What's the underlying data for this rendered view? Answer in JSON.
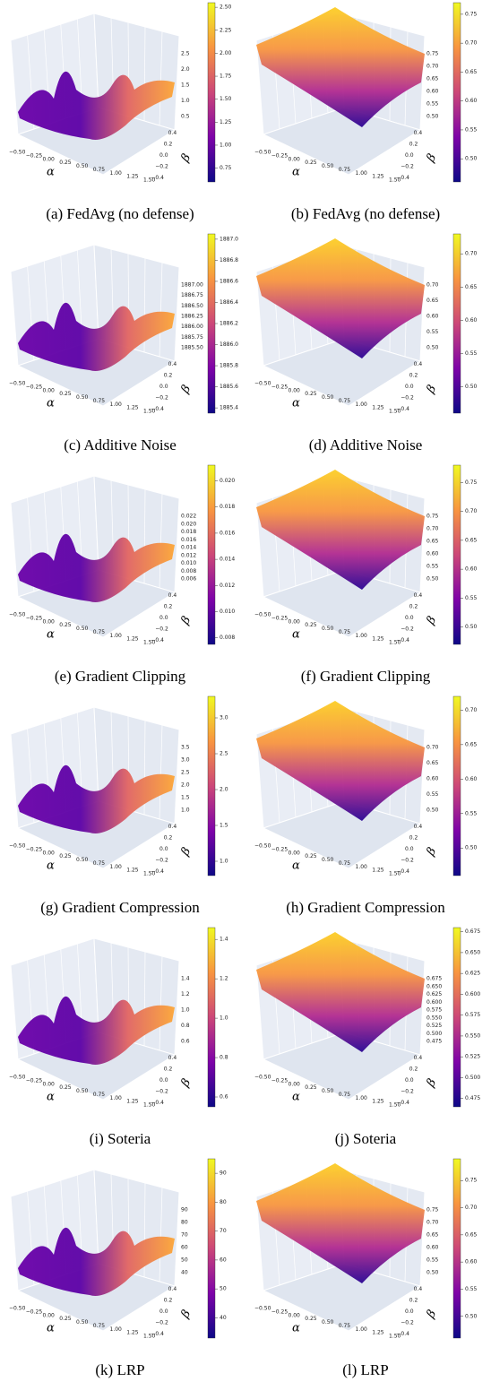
{
  "panels": [
    {
      "caption": "(a) FedAvg (no defense)",
      "colorbar": {
        "lim": [
          0.6,
          2.55
        ],
        "ticks": [
          0.75,
          {
            "value": 1,
            "label": "1.00"
          },
          1.25,
          {
            "value": 1.5,
            "label": "1.50"
          },
          1.75,
          {
            "value": 2,
            "label": "2.00"
          },
          2.25,
          {
            "value": 2.5,
            "label": "2.50"
          }
        ]
      },
      "zaxis": {
        "lim": [
          0.5,
          2.5
        ],
        "ticks": [
          0.5,
          {
            "value": 1,
            "label": "1.0"
          },
          1.5,
          {
            "value": 2,
            "label": "2.0"
          },
          2.5
        ]
      }
    },
    {
      "caption": "(b) FedAvg (no defense)",
      "colorbar": {
        "lim": [
          0.46,
          0.77
        ],
        "ticks": [
          {
            "value": 0.5,
            "label": "0.50"
          },
          0.55,
          {
            "value": 0.6,
            "label": "0.60"
          },
          0.65,
          {
            "value": 0.7,
            "label": "0.70"
          },
          0.75
        ]
      },
      "zaxis": {
        "lim": [
          0.5,
          0.75
        ],
        "ticks": [
          {
            "value": 0.5,
            "label": "0.50"
          },
          0.55,
          {
            "value": 0.6,
            "label": "0.60"
          },
          0.65,
          {
            "value": 0.7,
            "label": "0.70"
          },
          0.75
        ]
      }
    },
    {
      "caption": "(c) Additive Noise",
      "colorbar": {
        "lim": [
          1885.35,
          1887.05
        ],
        "ticks": [
          1885.4,
          1885.6,
          1885.8,
          {
            "value": 1886,
            "label": "1886.0"
          },
          1886.2,
          1886.4,
          1886.6,
          1886.8,
          {
            "value": 1887,
            "label": "1887.0"
          }
        ]
      },
      "zaxis": {
        "lim": [
          1885.5,
          1887
        ],
        "ticks": [
          {
            "value": 1885.5,
            "label": "1885.50"
          },
          1885.75,
          {
            "value": 1886,
            "label": "1886.00"
          },
          1886.25,
          {
            "value": 1886.5,
            "label": "1886.50"
          },
          1886.75,
          {
            "value": 1887,
            "label": "1887.00"
          }
        ]
      }
    },
    {
      "caption": "(d) Additive Noise",
      "colorbar": {
        "lim": [
          0.46,
          0.73
        ],
        "ticks": [
          {
            "value": 0.5,
            "label": "0.50"
          },
          0.55,
          {
            "value": 0.6,
            "label": "0.60"
          },
          0.65,
          {
            "value": 0.7,
            "label": "0.70"
          }
        ]
      },
      "zaxis": {
        "lim": [
          0.5,
          0.7
        ],
        "ticks": [
          {
            "value": 0.5,
            "label": "0.50"
          },
          0.55,
          {
            "value": 0.6,
            "label": "0.60"
          },
          0.65,
          {
            "value": 0.7,
            "label": "0.70"
          }
        ]
      }
    },
    {
      "caption": "(e) Gradient Clipping",
      "colorbar": {
        "lim": [
          0.0075,
          0.0212
        ],
        "ticks": [
          0.008,
          {
            "value": 0.01,
            "label": "0.010"
          },
          0.012,
          0.014,
          0.016,
          0.018,
          {
            "value": 0.02,
            "label": "0.020"
          }
        ]
      },
      "zaxis": {
        "lim": [
          0.006,
          0.022
        ],
        "ticks": [
          0.006,
          0.008,
          {
            "value": 0.01,
            "label": "0.010"
          },
          0.012,
          0.014,
          0.016,
          0.018,
          {
            "value": 0.02,
            "label": "0.020"
          },
          0.022
        ]
      }
    },
    {
      "caption": "(f) Gradient Clipping",
      "colorbar": {
        "lim": [
          0.47,
          0.78
        ],
        "ticks": [
          {
            "value": 0.5,
            "label": "0.50"
          },
          0.55,
          {
            "value": 0.6,
            "label": "0.60"
          },
          0.65,
          {
            "value": 0.7,
            "label": "0.70"
          },
          0.75
        ]
      },
      "zaxis": {
        "lim": [
          0.5,
          0.75
        ],
        "ticks": [
          {
            "value": 0.5,
            "label": "0.50"
          },
          0.55,
          {
            "value": 0.6,
            "label": "0.60"
          },
          0.65,
          {
            "value": 0.7,
            "label": "0.70"
          },
          0.75
        ]
      }
    },
    {
      "caption": "(g) Gradient Compression",
      "colorbar": {
        "lim": [
          0.8,
          3.3
        ],
        "ticks": [
          {
            "value": 1,
            "label": "1.0"
          },
          1.5,
          {
            "value": 2,
            "label": "2.0"
          },
          2.5,
          {
            "value": 3,
            "label": "3.0"
          }
        ]
      },
      "zaxis": {
        "lim": [
          1,
          3.5
        ],
        "ticks": [
          {
            "value": 1,
            "label": "1.0"
          },
          1.5,
          {
            "value": 2,
            "label": "2.0"
          },
          2.5,
          {
            "value": 3,
            "label": "3.0"
          },
          3.5
        ]
      }
    },
    {
      "caption": "(h) Gradient Compression",
      "colorbar": {
        "lim": [
          0.46,
          0.72
        ],
        "ticks": [
          {
            "value": 0.5,
            "label": "0.50"
          },
          0.55,
          {
            "value": 0.6,
            "label": "0.60"
          },
          0.65,
          {
            "value": 0.7,
            "label": "0.70"
          }
        ]
      },
      "zaxis": {
        "lim": [
          0.5,
          0.7
        ],
        "ticks": [
          {
            "value": 0.5,
            "label": "0.50"
          },
          0.55,
          {
            "value": 0.6,
            "label": "0.60"
          },
          0.65,
          {
            "value": 0.7,
            "label": "0.70"
          }
        ]
      }
    },
    {
      "caption": "(i) Soteria",
      "colorbar": {
        "lim": [
          0.55,
          1.46
        ],
        "ticks": [
          0.6,
          0.8,
          {
            "value": 1,
            "label": "1.0"
          },
          1.2,
          1.4
        ]
      },
      "zaxis": {
        "lim": [
          0.6,
          1.4
        ],
        "ticks": [
          0.6,
          0.8,
          {
            "value": 1,
            "label": "1.0"
          },
          1.2,
          1.4
        ]
      }
    },
    {
      "caption": "(j) Soteria",
      "colorbar": {
        "lim": [
          0.465,
          0.68
        ],
        "ticks": [
          0.475,
          {
            "value": 0.5,
            "label": "0.500"
          },
          0.525,
          {
            "value": 0.55,
            "label": "0.550"
          },
          0.575,
          {
            "value": 0.6,
            "label": "0.600"
          },
          0.625,
          {
            "value": 0.65,
            "label": "0.650"
          },
          0.675
        ]
      },
      "zaxis": {
        "lim": [
          0.475,
          0.675
        ],
        "ticks": [
          0.475,
          {
            "value": 0.5,
            "label": "0.500"
          },
          0.525,
          {
            "value": 0.55,
            "label": "0.550"
          },
          0.575,
          {
            "value": 0.6,
            "label": "0.600"
          },
          0.625,
          {
            "value": 0.65,
            "label": "0.650"
          },
          0.675
        ]
      }
    },
    {
      "caption": "(k) LRP",
      "colorbar": {
        "lim": [
          33,
          95
        ],
        "ticks": [
          40,
          50,
          60,
          70,
          80,
          90
        ]
      },
      "zaxis": {
        "lim": [
          40,
          90
        ],
        "ticks": [
          40,
          50,
          60,
          70,
          80,
          90
        ]
      }
    },
    {
      "caption": "(l) LRP",
      "colorbar": {
        "lim": [
          0.46,
          0.79
        ],
        "ticks": [
          {
            "value": 0.5,
            "label": "0.50"
          },
          0.55,
          {
            "value": 0.6,
            "label": "0.60"
          },
          0.65,
          {
            "value": 0.7,
            "label": "0.70"
          },
          0.75
        ]
      },
      "zaxis": {
        "lim": [
          0.5,
          0.75
        ],
        "ticks": [
          {
            "value": 0.5,
            "label": "0.50"
          },
          0.55,
          {
            "value": 0.6,
            "label": "0.60"
          },
          0.65,
          {
            "value": 0.7,
            "label": "0.70"
          },
          0.75
        ]
      }
    }
  ],
  "xaxis": {
    "label": "α",
    "lim": [
      -0.5,
      1.5
    ],
    "ticks": [
      {
        "value": -0.5,
        "label": "−0.50"
      },
      {
        "value": -0.25,
        "label": "−0.25"
      },
      {
        "value": 0,
        "label": "0.00"
      },
      0.25,
      {
        "value": 0.5,
        "label": "0.50"
      },
      0.75,
      {
        "value": 1,
        "label": "1.00"
      },
      1.25,
      {
        "value": 1.5,
        "label": "1.50"
      }
    ]
  },
  "yaxis": {
    "label": "β",
    "lim": [
      -0.5,
      0.5
    ],
    "ticks": [
      {
        "value": -0.4,
        "label": "−0.4"
      },
      {
        "value": -0.2,
        "label": "−0.2"
      },
      {
        "value": 0,
        "label": "0.0"
      },
      0.2,
      0.4
    ]
  }
}
